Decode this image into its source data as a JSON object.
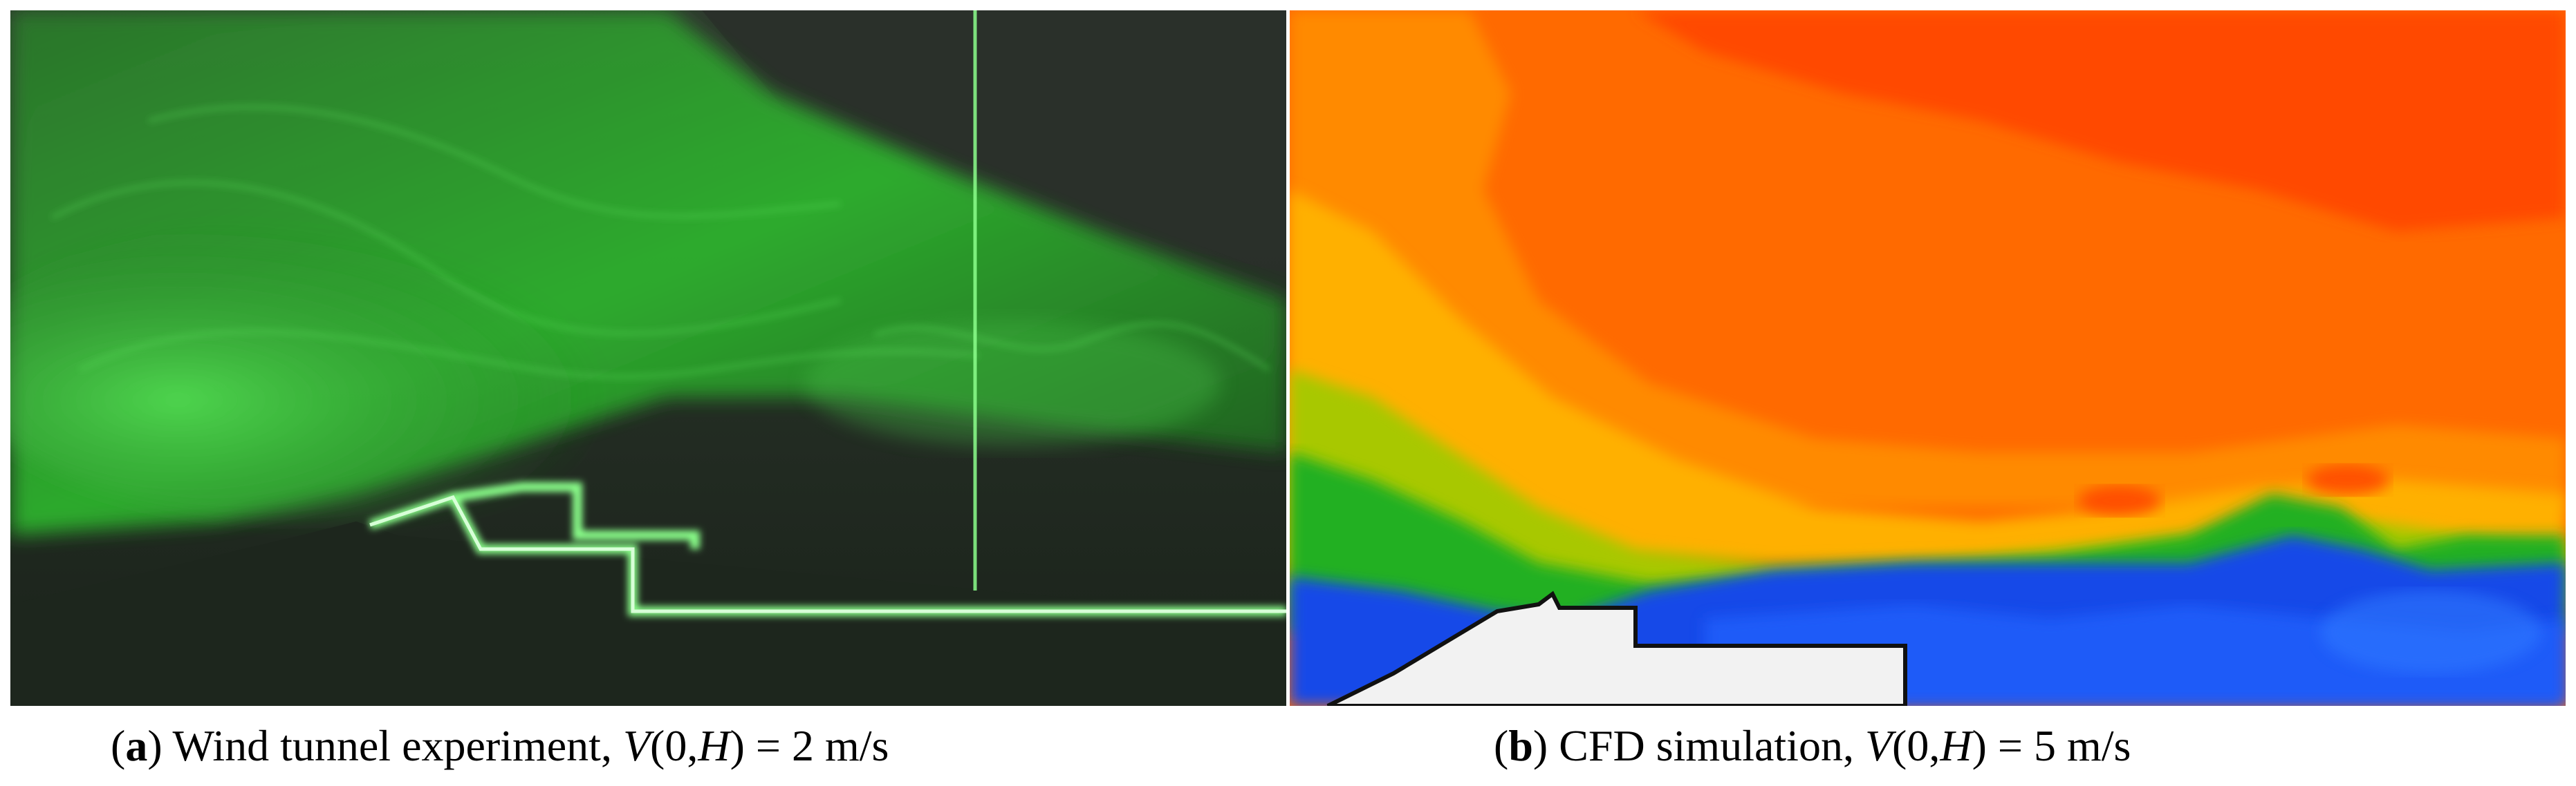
{
  "panels": [
    {
      "id": "a",
      "caption": {
        "open": "(",
        "letter": "a",
        "close": ")",
        "text": " Wind tunnel experiment, ",
        "var": "V",
        "args_open": "(0,",
        "args_var": "H",
        "args_close": ")",
        "value": " = 2 m/s"
      }
    },
    {
      "id": "b",
      "caption": {
        "open": "(",
        "letter": "b",
        "close": ")",
        "text": " CFD simulation, ",
        "var": "V",
        "args_open": "(0,",
        "args_var": "H",
        "args_close": ")",
        "value": " = 5 m/s"
      }
    }
  ],
  "colors": {
    "smoke_green": "#3bd43b",
    "laser_green": "#9dff9d",
    "tunnel_dark": "#1c2a1c",
    "cfd_high": "#ff4a00",
    "cfd_mid": "#ff9a00",
    "cfd_yellow": "#ffc400",
    "cfd_green": "#22b022",
    "cfd_blue": "#1240e0",
    "cfd_low": "#1a60ff",
    "building": "#f2f2f2"
  }
}
